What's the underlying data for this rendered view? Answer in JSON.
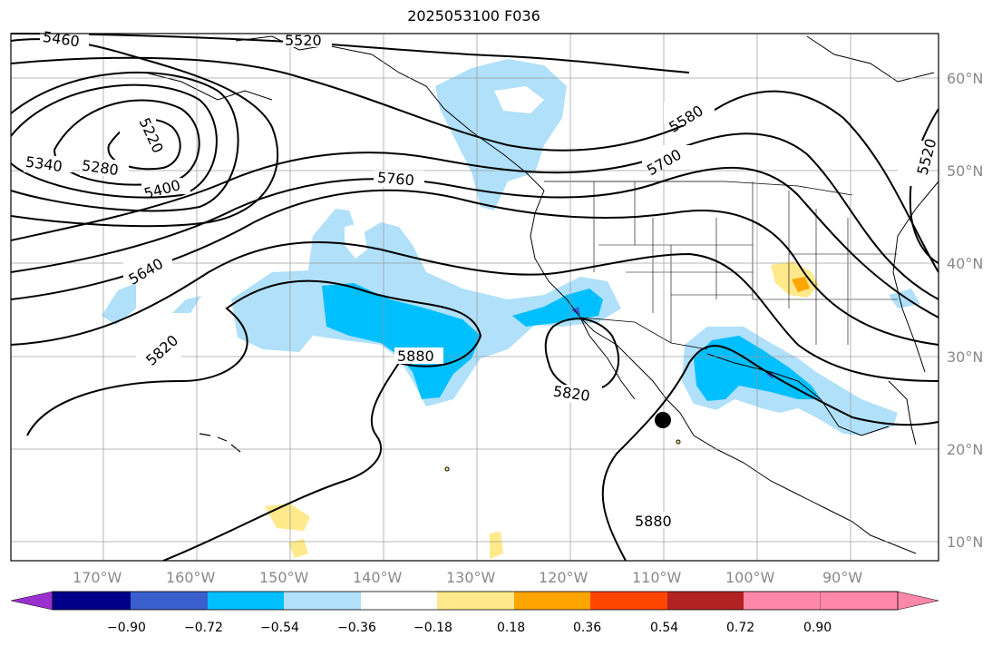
{
  "title": "2025053100 F036",
  "axes": {
    "lon_labels": [
      "170°W",
      "160°W",
      "150°W",
      "140°W",
      "130°W",
      "120°W",
      "110°W",
      "100°W",
      "90°W"
    ],
    "lat_labels": [
      "60°N",
      "50°N",
      "40°N",
      "30°N",
      "20°N",
      "10°N"
    ]
  },
  "contour_labels": [
    "5460",
    "5520",
    "5220",
    "5280",
    "5340",
    "5400",
    "5760",
    "5580",
    "5700",
    "5520",
    "5640",
    "5820",
    "5880",
    "5820",
    "5880"
  ],
  "colorbar": {
    "ticks": [
      "−0.90",
      "−0.72",
      "−0.54",
      "−0.36",
      "−0.18",
      "0.18",
      "0.36",
      "0.54",
      "0.72",
      "0.90"
    ],
    "colors": [
      "#9b30d0",
      "#00008b",
      "#3a5fcd",
      "#00bfff",
      "#b0e0fa",
      "#ffffff",
      "#ffe98a",
      "#ffa500",
      "#ff4500",
      "#b22222",
      "#ff88aa"
    ]
  },
  "marker": "storm-center-dot"
}
